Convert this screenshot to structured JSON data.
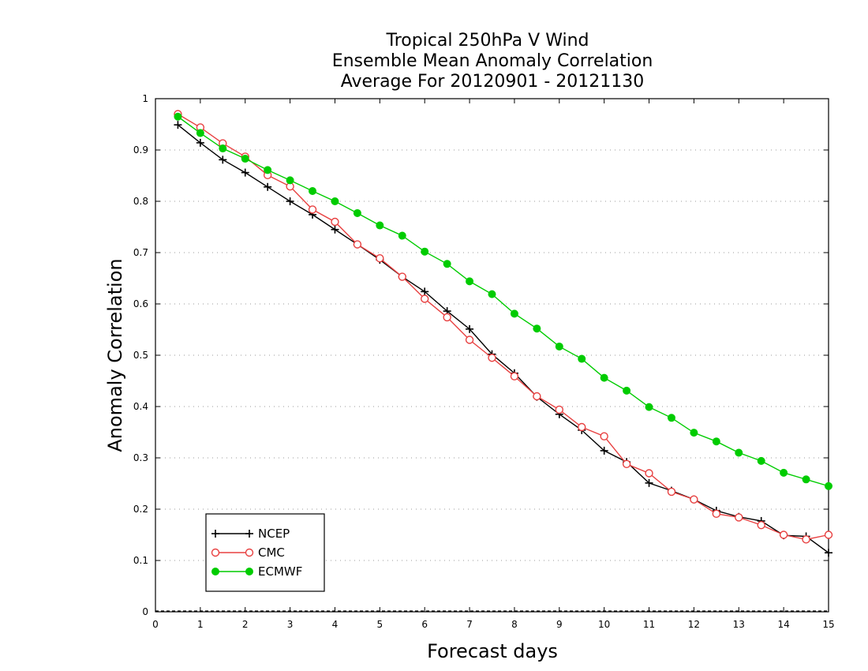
{
  "chart_data": {
    "type": "line",
    "title": [
      "Tropical 250hPa V Wind",
      "Ensemble Mean Anomaly Correlation",
      "Average For 20120901 - 20121130"
    ],
    "xlabel": "Forecast days",
    "ylabel": "Anomaly Correlation",
    "xlim": [
      0,
      15
    ],
    "ylim": [
      0,
      1
    ],
    "xticks": [
      "0",
      "1",
      "2",
      "3",
      "4",
      "5",
      "6",
      "7",
      "8",
      "9",
      "10",
      "11",
      "12",
      "13",
      "14",
      "15"
    ],
    "yticks": [
      "0",
      "0.1",
      "0.2",
      "0.3",
      "0.4",
      "0.5",
      "0.6",
      "0.7",
      "0.8",
      "0.9",
      "1"
    ],
    "grid": "horizontal-dotted",
    "legend_position": "bottom-left",
    "x": [
      0.5,
      1,
      1.5,
      2,
      2.5,
      3,
      3.5,
      4,
      4.5,
      5,
      5.5,
      6,
      6.5,
      7,
      7.5,
      8,
      8.5,
      9,
      9.5,
      10,
      10.5,
      11,
      11.5,
      12,
      12.5,
      13,
      13.5,
      14,
      14.5,
      15
    ],
    "series": [
      {
        "name": "NCEP",
        "color": "#000000",
        "marker": "plus",
        "values": [
          0.949,
          0.914,
          0.881,
          0.856,
          0.828,
          0.8,
          0.774,
          0.745,
          0.716,
          0.686,
          0.653,
          0.624,
          0.586,
          0.551,
          0.502,
          0.465,
          0.419,
          0.385,
          0.354,
          0.314,
          0.292,
          0.251,
          0.236,
          0.219,
          0.197,
          0.185,
          0.177,
          0.149,
          0.147,
          0.115
        ]
      },
      {
        "name": "CMC",
        "color": "#e84040",
        "marker": "open-circle",
        "values": [
          0.97,
          0.944,
          0.913,
          0.887,
          0.851,
          0.829,
          0.784,
          0.76,
          0.716,
          0.689,
          0.653,
          0.61,
          0.574,
          0.53,
          0.495,
          0.459,
          0.42,
          0.394,
          0.36,
          0.342,
          0.288,
          0.27,
          0.234,
          0.219,
          0.191,
          0.184,
          0.169,
          0.15,
          0.141,
          0.15
        ]
      },
      {
        "name": "ECMWF",
        "color": "#00cc00",
        "marker": "filled-circle",
        "values": [
          0.965,
          0.933,
          0.903,
          0.883,
          0.861,
          0.841,
          0.82,
          0.8,
          0.777,
          0.753,
          0.733,
          0.702,
          0.678,
          0.644,
          0.619,
          0.581,
          0.552,
          0.517,
          0.493,
          0.456,
          0.431,
          0.399,
          0.378,
          0.349,
          0.332,
          0.31,
          0.294,
          0.271,
          0.258,
          0.245
        ]
      }
    ]
  }
}
